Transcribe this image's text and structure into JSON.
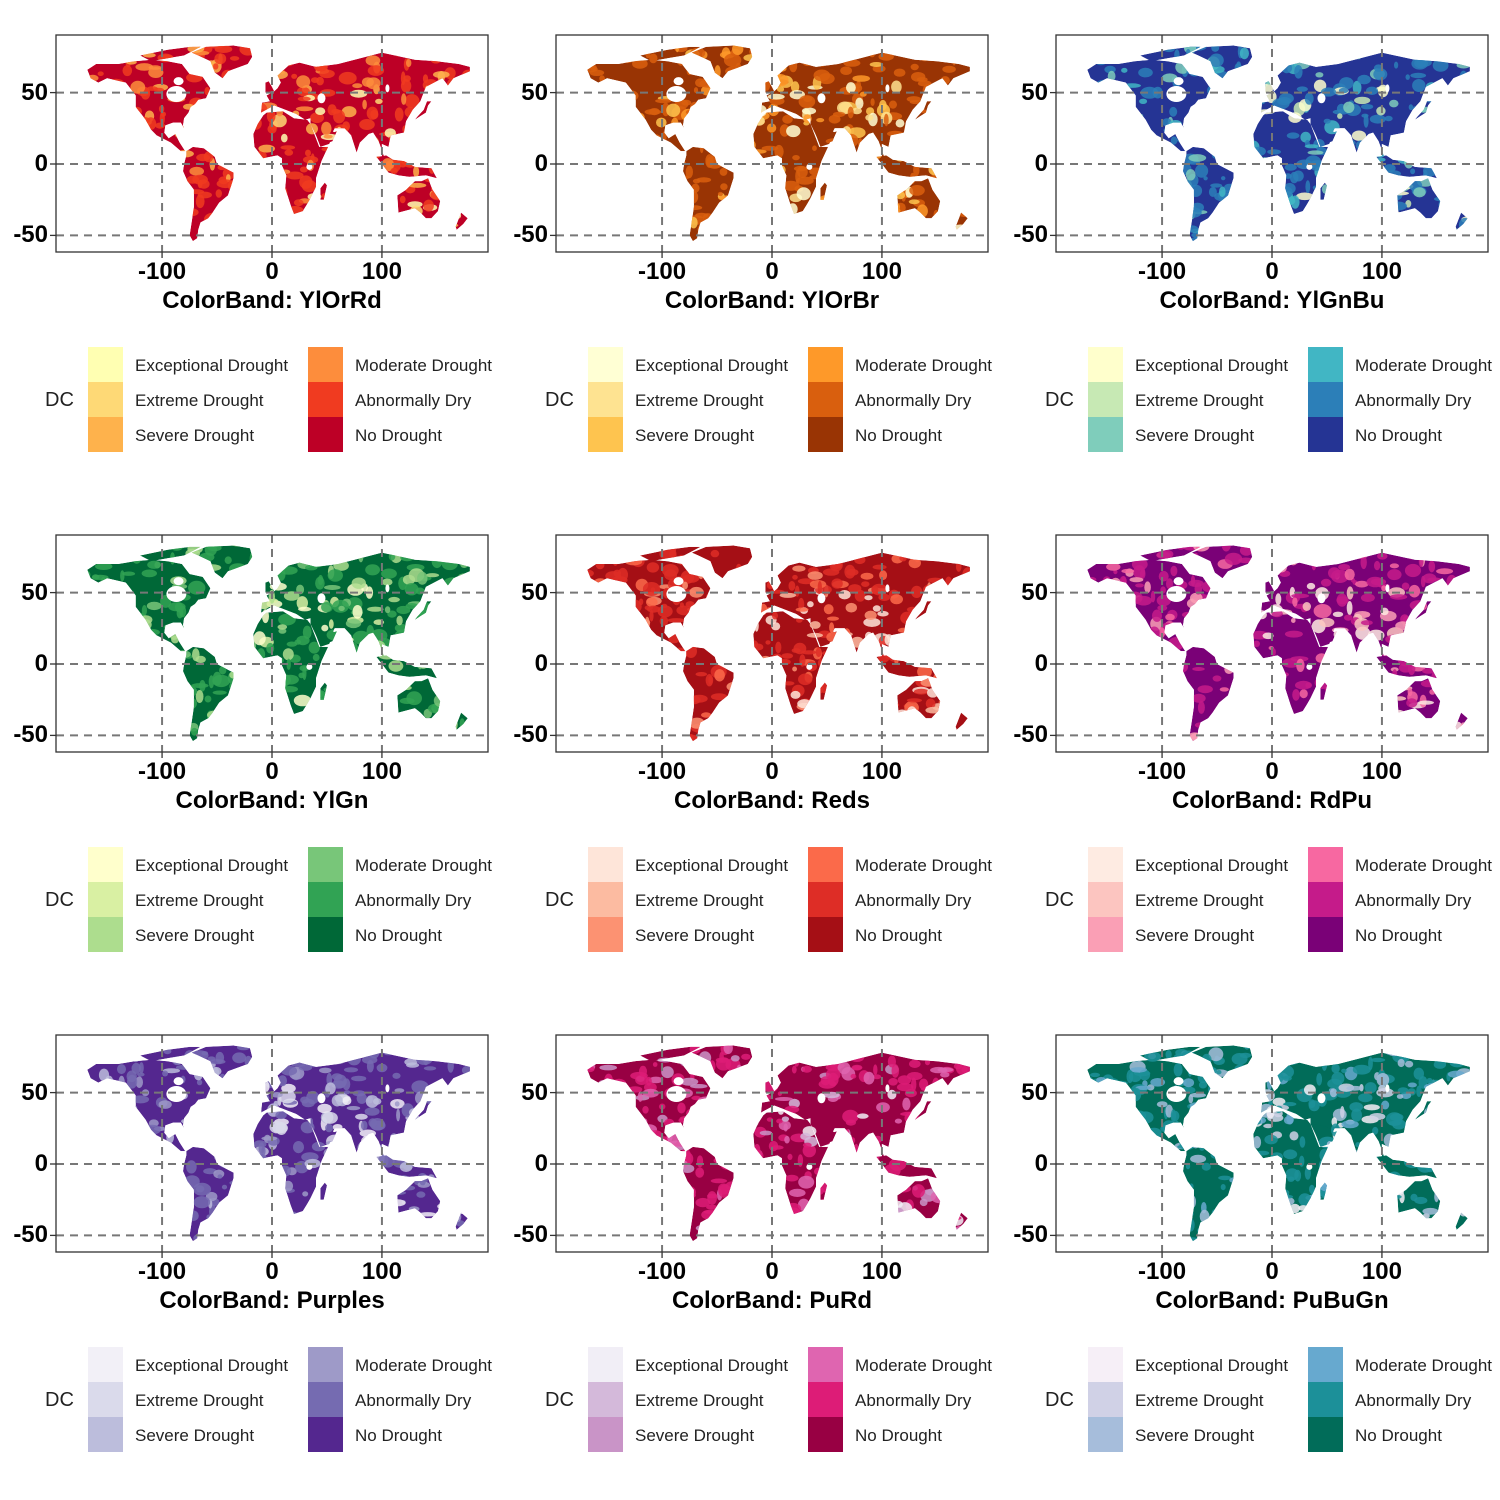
{
  "figure": {
    "legend_title": "DC",
    "y_ticks": [
      "50",
      "0",
      "-50"
    ],
    "x_ticks": [
      "-100",
      "0",
      "100"
    ],
    "categories": [
      "Exceptional Drought",
      "Extreme Drought",
      "Severe Drought",
      "Moderate Drought",
      "Abnormally Dry",
      "No Drought"
    ]
  },
  "panels": [
    {
      "title": "ColorBand: YlOrRd",
      "palette": [
        "#ffffb2",
        "#fed976",
        "#feb24c",
        "#fd8d3c",
        "#f03b20",
        "#bd0026"
      ]
    },
    {
      "title": "ColorBand: YlOrBr",
      "palette": [
        "#ffffd4",
        "#fee391",
        "#fec44f",
        "#fe9929",
        "#d95f0e",
        "#993404"
      ]
    },
    {
      "title": "ColorBand: YlGnBu",
      "palette": [
        "#ffffcc",
        "#c7e9b4",
        "#7fcdbb",
        "#41b6c4",
        "#2c7fb8",
        "#253494"
      ]
    },
    {
      "title": "ColorBand: YlGn",
      "palette": [
        "#ffffcc",
        "#d9f0a3",
        "#addd8e",
        "#78c679",
        "#31a354",
        "#006837"
      ]
    },
    {
      "title": "ColorBand: Reds",
      "palette": [
        "#fee5d9",
        "#fcbba1",
        "#fc9272",
        "#fb6a4a",
        "#de2d26",
        "#a50f15"
      ]
    },
    {
      "title": "ColorBand: RdPu",
      "palette": [
        "#feebe2",
        "#fcc5c0",
        "#fa9fb5",
        "#f768a1",
        "#c51b8a",
        "#7a0177"
      ]
    },
    {
      "title": "ColorBand: Purples",
      "palette": [
        "#f2f0f7",
        "#dadaeb",
        "#bcbddc",
        "#9e9ac8",
        "#756bb1",
        "#54278f"
      ]
    },
    {
      "title": "ColorBand: PuRd",
      "palette": [
        "#f1eef6",
        "#d4b9da",
        "#c994c7",
        "#df65b0",
        "#dd1c77",
        "#980043"
      ]
    },
    {
      "title": "ColorBand: PuBuGn",
      "palette": [
        "#f6eff7",
        "#d0d1e6",
        "#a6bddb",
        "#67a9cf",
        "#1c9099",
        "#016c59"
      ]
    }
  ]
}
